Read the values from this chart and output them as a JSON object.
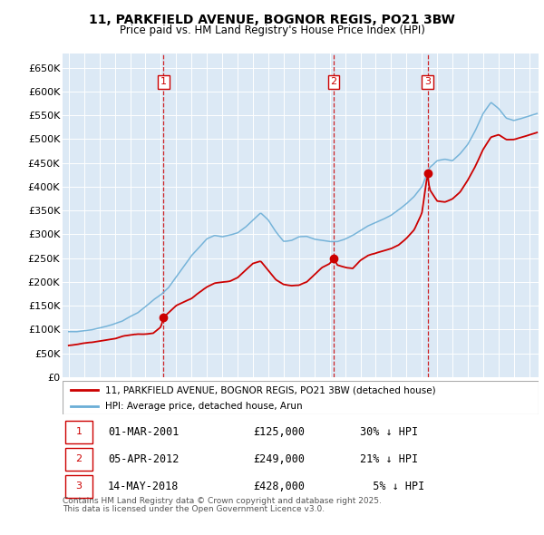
{
  "title": "11, PARKFIELD AVENUE, BOGNOR REGIS, PO21 3BW",
  "subtitle": "Price paid vs. HM Land Registry's House Price Index (HPI)",
  "plot_bg_color": "#dce9f5",
  "ylim": [
    0,
    680000
  ],
  "yticks": [
    0,
    50000,
    100000,
    150000,
    200000,
    250000,
    300000,
    350000,
    400000,
    450000,
    500000,
    550000,
    600000,
    650000
  ],
  "ytick_labels": [
    "£0",
    "£50K",
    "£100K",
    "£150K",
    "£200K",
    "£250K",
    "£300K",
    "£350K",
    "£400K",
    "£450K",
    "£500K",
    "£550K",
    "£600K",
    "£650K"
  ],
  "legend_line1": "11, PARKFIELD AVENUE, BOGNOR REGIS, PO21 3BW (detached house)",
  "legend_line2": "HPI: Average price, detached house, Arun",
  "sale_color": "#cc0000",
  "hpi_color": "#6baed6",
  "footer_line1": "Contains HM Land Registry data © Crown copyright and database right 2025.",
  "footer_line2": "This data is licensed under the Open Government Licence v3.0.",
  "xstart": 1994.6,
  "xend": 2025.6,
  "trans": [
    {
      "num": 1,
      "year": 2001.17,
      "price": 125000,
      "date": "01-MAR-2001",
      "price_str": "£125,000",
      "note": "30% ↓ HPI"
    },
    {
      "num": 2,
      "year": 2012.25,
      "price": 249000,
      "date": "05-APR-2012",
      "price_str": "£249,000",
      "note": "21% ↓ HPI"
    },
    {
      "num": 3,
      "year": 2018.37,
      "price": 428000,
      "date": "14-MAY-2018",
      "price_str": "£428,000",
      "note": "  5% ↓ HPI"
    }
  ]
}
